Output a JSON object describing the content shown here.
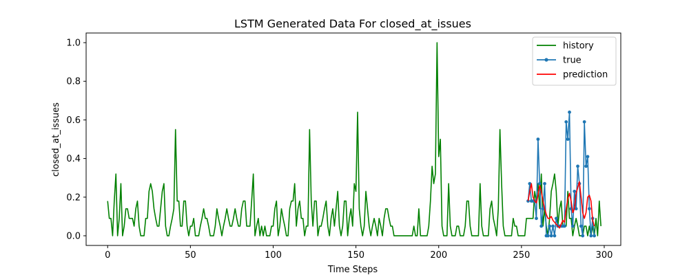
{
  "chart_data": {
    "type": "line",
    "title": "LSTM Generated Data For closed_at_issues",
    "xlabel": "Time Steps",
    "ylabel": "closed_at_issues",
    "xlim": [
      -13,
      310
    ],
    "ylim": [
      -0.05,
      1.05
    ],
    "xticks": [
      0,
      50,
      100,
      150,
      200,
      250,
      300
    ],
    "yticks": [
      0.0,
      0.2,
      0.4,
      0.6,
      0.8,
      1.0
    ],
    "legend_position": "top-right",
    "grid": false,
    "series": [
      {
        "name": "history",
        "color": "#008000",
        "marker": false,
        "x_start": 0,
        "values": [
          0.18,
          0.09,
          0.09,
          0.0,
          0.18,
          0.32,
          0.0,
          0.09,
          0.27,
          0.0,
          0.05,
          0.14,
          0.14,
          0.09,
          0.09,
          0.09,
          0.05,
          0.14,
          0.18,
          0.05,
          0.0,
          0.0,
          0.0,
          0.09,
          0.09,
          0.23,
          0.27,
          0.23,
          0.14,
          0.09,
          0.05,
          0.05,
          0.14,
          0.23,
          0.27,
          0.05,
          0.0,
          0.0,
          0.05,
          0.09,
          0.14,
          0.55,
          0.18,
          0.18,
          0.05,
          0.05,
          0.18,
          0.18,
          0.05,
          0.0,
          0.05,
          0.05,
          0.09,
          0.0,
          0.0,
          0.0,
          0.05,
          0.09,
          0.14,
          0.09,
          0.09,
          0.05,
          0.0,
          0.0,
          0.0,
          0.05,
          0.14,
          0.09,
          0.05,
          0.0,
          0.05,
          0.09,
          0.14,
          0.09,
          0.05,
          0.05,
          0.09,
          0.14,
          0.09,
          0.05,
          0.05,
          0.14,
          0.18,
          0.18,
          0.05,
          0.05,
          0.05,
          0.18,
          0.32,
          0.0,
          0.05,
          0.09,
          0.0,
          0.05,
          0.0,
          0.05,
          0.0,
          0.0,
          0.0,
          0.05,
          0.05,
          0.14,
          0.18,
          0.0,
          0.05,
          0.14,
          0.09,
          0.05,
          0.0,
          0.0,
          0.14,
          0.18,
          0.18,
          0.27,
          0.05,
          0.14,
          0.18,
          0.09,
          0.09,
          0.0,
          0.05,
          0.05,
          0.55,
          0.18,
          0.05,
          0.18,
          0.18,
          0.0,
          0.05,
          0.05,
          0.09,
          0.14,
          0.18,
          0.05,
          0.0,
          0.09,
          0.14,
          0.05,
          0.14,
          0.23,
          0.05,
          0.0,
          0.05,
          0.18,
          0.18,
          0.0,
          0.09,
          0.14,
          0.05,
          0.27,
          0.23,
          0.64,
          0.14,
          0.05,
          0.0,
          0.05,
          0.23,
          0.14,
          0.05,
          0.0,
          0.05,
          0.09,
          0.05,
          0.0,
          0.09,
          0.05,
          0.0,
          0.09,
          0.14,
          0.14,
          0.09,
          0.05,
          0.05,
          0.0,
          0.0,
          0.0,
          0.0,
          0.0,
          0.0,
          0.0,
          0.0,
          0.0,
          0.0,
          0.0,
          0.0,
          0.05,
          0.0,
          0.0,
          0.14,
          0.0,
          0.0,
          0.0,
          0.0,
          0.0,
          0.05,
          0.18,
          0.36,
          0.27,
          0.32,
          1.0,
          0.41,
          0.5,
          0.05,
          0.0,
          0.0,
          0.0,
          0.27,
          0.05,
          0.0,
          0.0,
          0.0,
          0.05,
          0.05,
          0.0,
          0.0,
          0.0,
          0.05,
          0.18,
          0.18,
          0.05,
          0.0,
          0.0,
          0.0,
          0.0,
          0.0,
          0.27,
          0.05,
          0.0,
          0.0,
          0.0,
          0.0,
          0.14,
          0.18,
          0.09,
          0.05,
          0.0,
          0.14,
          0.55,
          0.27,
          0.05,
          0.0,
          0.0,
          0.0,
          0.0,
          0.0,
          0.09,
          0.05,
          0.05,
          0.0,
          0.0,
          0.0,
          0.0,
          0.0,
          0.09,
          0.09,
          0.09,
          0.09,
          0.09,
          0.23,
          0.18,
          0.27,
          0.14,
          0.32,
          0.05,
          0.14,
          0.05,
          0.0,
          0.09,
          0.23,
          0.27,
          0.32,
          0.23,
          0.05,
          0.14,
          0.18,
          0.05,
          0.05,
          0.05,
          0.23,
          0.09,
          0.09,
          0.0,
          0.05,
          0.09,
          0.05,
          0.0,
          0.0,
          0.0,
          0.05,
          0.05,
          0.0,
          0.05,
          0.0,
          0.05,
          0.0,
          0.09,
          0.0,
          0.18,
          0.05
        ]
      },
      {
        "name": "true",
        "color": "#1f77b4",
        "marker": true,
        "x_start": 254,
        "values": [
          0.18,
          0.27,
          0.18,
          0.18,
          0.18,
          0.09,
          0.5,
          0.27,
          0.05,
          0.14,
          0.27,
          0.0,
          0.0,
          0.05,
          0.0,
          0.05,
          0.0,
          0.09,
          0.05,
          0.05,
          0.05,
          0.05,
          0.05,
          0.59,
          0.5,
          0.64,
          0.14,
          0.05,
          0.23,
          0.14,
          0.36,
          0.27,
          0.05,
          0.0,
          0.59,
          0.36,
          0.41,
          0.14,
          0.0,
          0.09,
          0.0
        ]
      },
      {
        "name": "prediction",
        "color": "#ff0000",
        "marker": false,
        "x_start": 254,
        "values": [
          0.18,
          0.23,
          0.27,
          0.2,
          0.18,
          0.17,
          0.21,
          0.26,
          0.23,
          0.18,
          0.14,
          0.11,
          0.09,
          0.09,
          0.1,
          0.08,
          0.07,
          0.06,
          0.05,
          0.04,
          0.06,
          0.08,
          0.07,
          0.14,
          0.19,
          0.22,
          0.18,
          0.12,
          0.14,
          0.22,
          0.25,
          0.28,
          0.2,
          0.12,
          0.09,
          0.12,
          0.2,
          0.21,
          0.18,
          0.08,
          0.05
        ]
      }
    ]
  }
}
